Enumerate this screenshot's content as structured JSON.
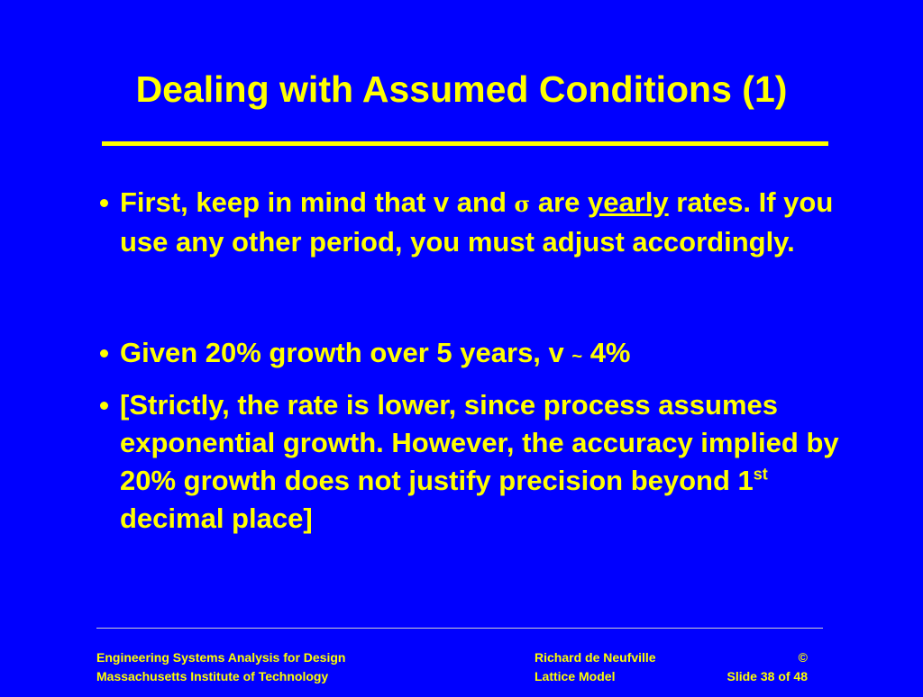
{
  "title": "Dealing with Assumed Conditions (1)",
  "bullets": [
    [
      "First, keep in mind that v and ",
      "σ",
      " are ",
      "yearly",
      " rates.  If you use any other period, you must adjust accordingly."
    ],
    [
      "Given 20% growth over 5 years, v ",
      "~",
      " 4%"
    ],
    [
      "[Strictly, the rate is lower, since process assumes exponential growth.  However, the accuracy implied by 20% growth does not justify precision beyond 1",
      "st",
      " decimal place]"
    ]
  ],
  "footer": {
    "left": [
      "Engineering Systems Analysis for Design",
      "Massachusetts Institute of Technology"
    ],
    "middle": [
      "Richard de Neufville",
      "Lattice Model"
    ],
    "right": [
      "©",
      "Slide 38 of 48"
    ]
  }
}
